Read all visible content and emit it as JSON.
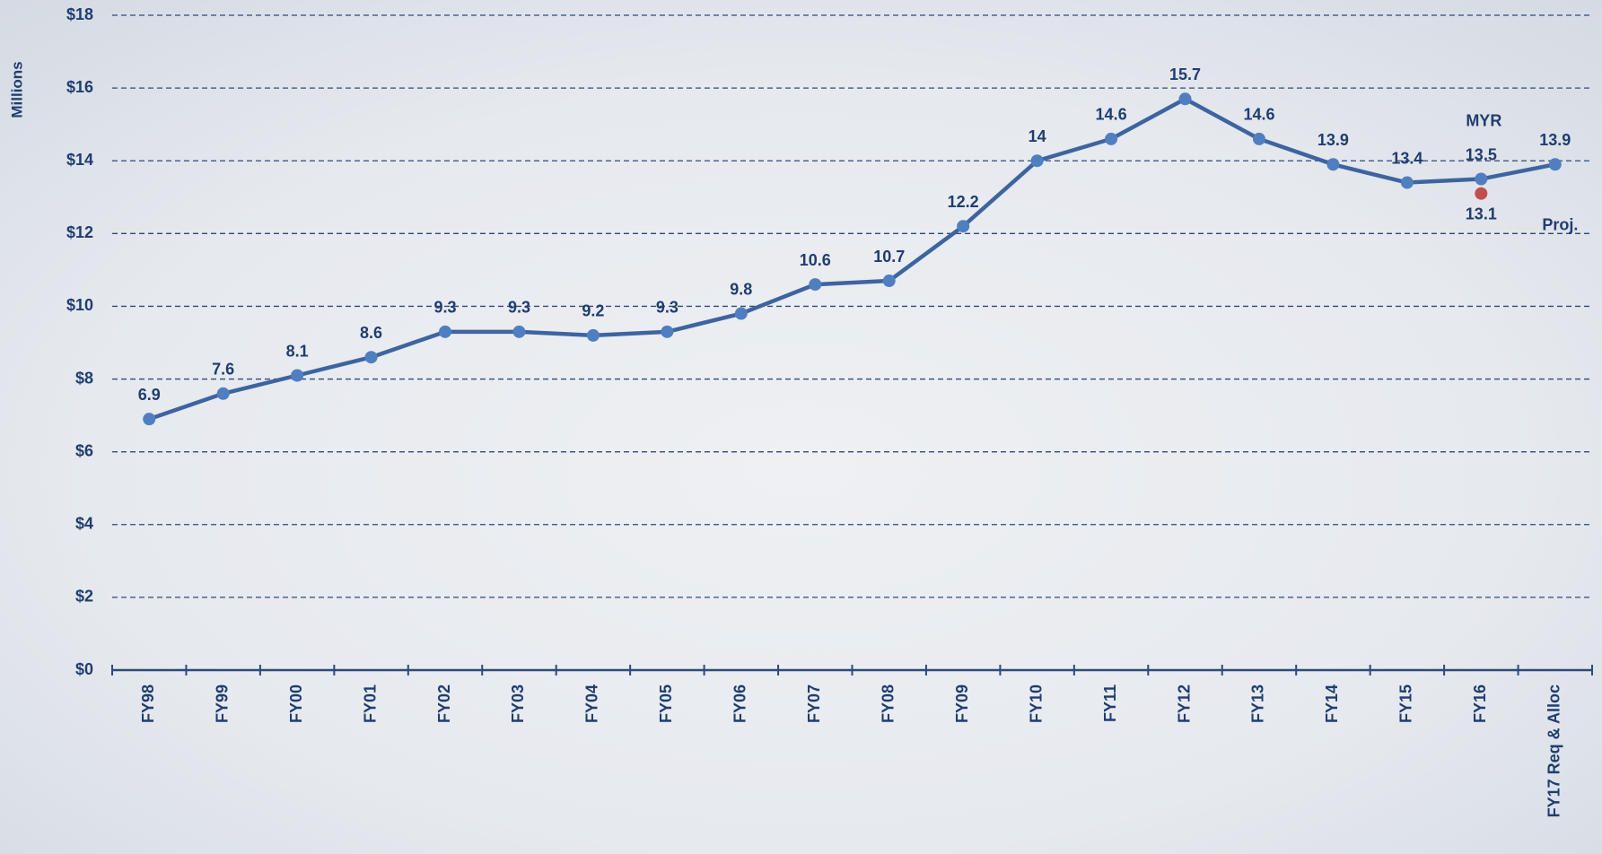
{
  "chart_data": {
    "type": "line",
    "y_label": "Millions",
    "categories": [
      "FY98",
      "FY99",
      "FY00",
      "FY01",
      "FY02",
      "FY03",
      "FY04",
      "FY05",
      "FY06",
      "FY07",
      "FY08",
      "FY09",
      "FY10",
      "FY11",
      "FY12",
      "FY13",
      "FY14",
      "FY15",
      "FY16",
      "FY17 Req & Alloc"
    ],
    "series": [
      {
        "color": "#3e64a0",
        "values": [
          6.9,
          7.6,
          8.1,
          8.6,
          9.3,
          9.3,
          9.2,
          9.3,
          9.8,
          10.6,
          10.7,
          12.2,
          14,
          14.6,
          15.7,
          14.6,
          13.9,
          13.4,
          13.5,
          13.9
        ]
      },
      {
        "color": "#c0504d",
        "values": [
          null,
          null,
          null,
          null,
          null,
          null,
          null,
          null,
          null,
          null,
          null,
          null,
          null,
          null,
          null,
          null,
          null,
          null,
          13.1,
          null
        ]
      }
    ],
    "annotations": [
      "MYR",
      "Proj."
    ],
    "ylim": [
      0,
      18
    ],
    "yticks": [
      {
        "value": 0,
        "label": "$0"
      },
      {
        "value": 2,
        "label": "$2"
      },
      {
        "value": 4,
        "label": "$4"
      },
      {
        "value": 6,
        "label": "$6"
      },
      {
        "value": 8,
        "label": "$8"
      },
      {
        "value": 10,
        "label": "$10"
      },
      {
        "value": 12,
        "label": "$12"
      },
      {
        "value": 14,
        "label": "$14"
      },
      {
        "value": 16,
        "label": "$16"
      },
      {
        "value": 18,
        "label": "$18"
      }
    ],
    "grid": true
  }
}
